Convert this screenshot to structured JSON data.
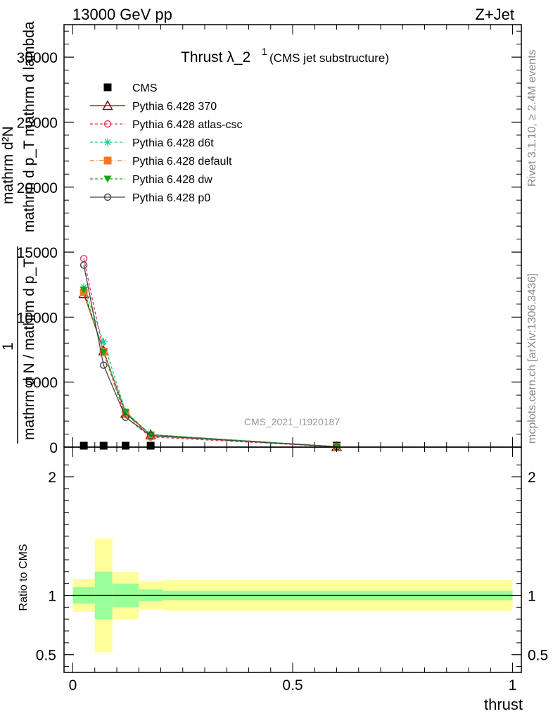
{
  "header": {
    "left": "13000 GeV pp",
    "right": "Z+Jet"
  },
  "side_labels": {
    "top": "Rivet 3.1.10, ≥ 2.4M events",
    "bottom": "mcplots.cern.ch [arXiv:1306.3436]"
  },
  "analysis_id": "CMS_2021_I1920187",
  "chart_data": [
    {
      "type": "line",
      "title_main": "Thrust λ_2",
      "title_sup": "1",
      "title_sub": "(CMS jet substructure)",
      "ylabel_top": "mathrm d²N",
      "ylabel_mid": "mathrm d p_T mathrm d lambda",
      "ylabel_frac_num": "1",
      "ylabel_frac_den": "mathrm d N / mathrm d p_T",
      "xlim": [
        -0.02,
        1.02
      ],
      "ylim": [
        0,
        32500
      ],
      "yticks": [
        {
          "v": 0,
          "label": "0"
        },
        {
          "v": 5000,
          "label": "5000"
        },
        {
          "v": 10000,
          "label": "10000"
        },
        {
          "v": 15000,
          "label": "15000"
        },
        {
          "v": 20000,
          "label": "20000"
        },
        {
          "v": 25000,
          "label": "25000"
        },
        {
          "v": 30000,
          "label": "30000"
        }
      ],
      "x": [
        0.025,
        0.07,
        0.12,
        0.177,
        0.6
      ],
      "series": [
        {
          "name": "CMS",
          "color": "#000000",
          "marker": "square",
          "dash": "",
          "values": [
            0,
            0,
            0,
            0,
            0
          ]
        },
        {
          "name": "Pythia 6.428 370",
          "color": "#8b0000",
          "marker": "triangle-open",
          "dash": "",
          "values": [
            11800,
            7400,
            2600,
            950,
            30
          ]
        },
        {
          "name": "Pythia 6.428 atlas-csc",
          "color": "#e8305a",
          "marker": "circle-open",
          "dash": "4,3",
          "values": [
            14500,
            7300,
            2300,
            780,
            25
          ]
        },
        {
          "name": "Pythia 6.428 d6t",
          "color": "#1fc896",
          "marker": "asterisk",
          "dash": "4,3",
          "values": [
            12300,
            8100,
            2700,
            930,
            30
          ]
        },
        {
          "name": "Pythia 6.428 default",
          "color": "#f07828",
          "marker": "square",
          "dash": "6,3,1,3",
          "values": [
            11900,
            7350,
            2550,
            860,
            28
          ]
        },
        {
          "name": "Pythia 6.428 dw",
          "color": "#17a517",
          "marker": "triangle-down",
          "dash": "4,3",
          "values": [
            12100,
            7300,
            2700,
            960,
            32
          ]
        },
        {
          "name": "Pythia 6.428 p0",
          "color": "#444444",
          "marker": "circle-open",
          "dash": "",
          "values": [
            14000,
            6300,
            2300,
            880,
            25
          ]
        }
      ]
    },
    {
      "type": "bar",
      "ylabel": "Ratio to CMS",
      "xlabel": "thrust",
      "xlim": [
        -0.02,
        1.02
      ],
      "ylim": [
        0.35,
        2.25
      ],
      "yticks": [
        {
          "v": 0.5,
          "label": "0.5"
        },
        {
          "v": 1,
          "label": "1"
        },
        {
          "v": 2,
          "label": "2"
        }
      ],
      "xticks": [
        {
          "v": 0,
          "label": "0"
        },
        {
          "v": 0.5,
          "label": "0.5"
        },
        {
          "v": 1,
          "label": "1"
        }
      ],
      "reference": 1,
      "bands": [
        {
          "x0": 0.0,
          "x1": 0.05,
          "inner": [
            0.93,
            1.07
          ],
          "outer": [
            0.86,
            1.14
          ]
        },
        {
          "x0": 0.05,
          "x1": 0.09,
          "inner": [
            0.8,
            1.2
          ],
          "outer": [
            0.52,
            1.48
          ]
        },
        {
          "x0": 0.09,
          "x1": 0.15,
          "inner": [
            0.9,
            1.1
          ],
          "outer": [
            0.8,
            1.2
          ]
        },
        {
          "x0": 0.15,
          "x1": 0.205,
          "inner": [
            0.95,
            1.05
          ],
          "outer": [
            0.88,
            1.12
          ]
        },
        {
          "x0": 0.205,
          "x1": 1.0,
          "inner": [
            0.96,
            1.04
          ],
          "outer": [
            0.87,
            1.13
          ]
        }
      ],
      "band_colors": {
        "inner": "#99ff99",
        "outer": "#ffff99"
      }
    }
  ]
}
